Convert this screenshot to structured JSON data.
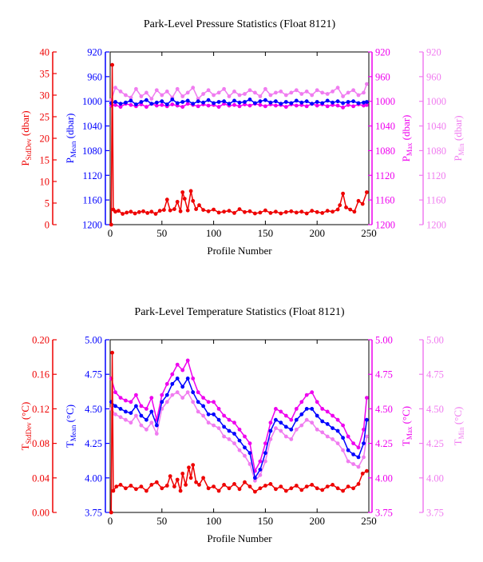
{
  "chart_data": [
    {
      "type": "line",
      "title": "Park-Level Pressure Statistics (Float 8121)",
      "xlabel": "Profile Number",
      "xlim": [
        0,
        250
      ],
      "xticks": [
        0,
        50,
        100,
        150,
        200,
        250
      ],
      "axes": {
        "stddev": {
          "label_base": "P",
          "label_sub": "StdDev",
          "label_unit": " (dbar)",
          "lim": [
            0,
            40
          ],
          "ticks": [
            0,
            5,
            10,
            15,
            20,
            25,
            30,
            35,
            40
          ],
          "inverted": false
        },
        "mean": {
          "label_base": "P",
          "label_sub": "Mean",
          "label_unit": " (dbar)",
          "lim": [
            920,
            1200
          ],
          "ticks": [
            920,
            960,
            1000,
            1040,
            1080,
            1120,
            1160,
            1200
          ],
          "inverted": true
        },
        "max": {
          "label_base": "P",
          "label_sub": "Max",
          "label_unit": " (dbar)",
          "lim": [
            920,
            1200
          ],
          "ticks": [
            920,
            960,
            1000,
            1040,
            1080,
            1120,
            1160,
            1200
          ],
          "inverted": true
        },
        "min": {
          "label_base": "P",
          "label_sub": "Min",
          "label_unit": " (dbar)",
          "lim": [
            920,
            1200
          ],
          "ticks": [
            920,
            960,
            1000,
            1040,
            1080,
            1120,
            1160,
            1200
          ],
          "inverted": true
        }
      },
      "series": [
        {
          "axis": "min",
          "color": "#f07cf0",
          "x": [
            1,
            5,
            10,
            15,
            20,
            25,
            30,
            35,
            40,
            45,
            50,
            55,
            60,
            65,
            70,
            75,
            80,
            85,
            90,
            95,
            100,
            105,
            110,
            115,
            120,
            125,
            130,
            135,
            140,
            145,
            150,
            155,
            160,
            165,
            170,
            175,
            180,
            185,
            190,
            195,
            200,
            205,
            210,
            215,
            220,
            225,
            230,
            235,
            240,
            245,
            248
          ],
          "y": [
            998,
            978,
            984,
            990,
            994,
            980,
            992,
            986,
            996,
            982,
            990,
            984,
            994,
            980,
            992,
            986,
            978,
            996,
            988,
            982,
            990,
            986,
            980,
            992,
            984,
            990,
            988,
            982,
            986,
            992,
            980,
            990,
            986,
            984,
            990,
            986,
            982,
            988,
            984,
            990,
            982,
            986,
            988,
            984,
            978,
            992,
            986,
            982,
            990,
            986,
            972
          ]
        },
        {
          "axis": "max",
          "color": "#ee00ee",
          "x": [
            1,
            5,
            10,
            15,
            20,
            25,
            30,
            35,
            40,
            45,
            50,
            55,
            60,
            65,
            70,
            75,
            80,
            85,
            90,
            95,
            100,
            105,
            110,
            115,
            120,
            125,
            130,
            135,
            140,
            145,
            150,
            155,
            160,
            165,
            170,
            175,
            180,
            185,
            190,
            195,
            200,
            205,
            210,
            215,
            220,
            225,
            230,
            235,
            240,
            245,
            248
          ],
          "y": [
            1007,
            1006,
            1009,
            1004,
            1006,
            1008,
            1005,
            1009,
            1004,
            1007,
            1006,
            1008,
            1005,
            1007,
            1009,
            1004,
            1006,
            1008,
            1005,
            1007,
            1006,
            1009,
            1004,
            1007,
            1006,
            1008,
            1005,
            1007,
            1004,
            1006,
            1008,
            1005,
            1007,
            1006,
            1009,
            1005,
            1007,
            1006,
            1008,
            1004,
            1007,
            1005,
            1008,
            1006,
            1007,
            1010,
            1006,
            1008,
            1005,
            1007,
            1006
          ]
        },
        {
          "axis": "mean",
          "color": "#0000ff",
          "x": [
            1,
            5,
            10,
            15,
            20,
            25,
            30,
            35,
            40,
            45,
            50,
            55,
            60,
            65,
            70,
            75,
            80,
            85,
            90,
            95,
            100,
            105,
            110,
            115,
            120,
            125,
            130,
            135,
            140,
            145,
            150,
            155,
            160,
            165,
            170,
            175,
            180,
            185,
            190,
            195,
            200,
            205,
            210,
            215,
            220,
            225,
            230,
            235,
            240,
            245,
            248
          ],
          "y": [
            1003,
            1001,
            1004,
            1002,
            999,
            1005,
            1001,
            998,
            1004,
            1002,
            1000,
            1005,
            997,
            1003,
            1001,
            999,
            1004,
            1000,
            1002,
            998,
            1003,
            1001,
            1000,
            1004,
            999,
            1002,
            1001,
            997,
            1003,
            1000,
            998,
            1002,
            1000,
            1004,
            1001,
            1003,
            999,
            1002,
            1000,
            1004,
            1001,
            1003,
            999,
            1002,
            1000,
            1003,
            1001,
            1000,
            1003,
            1002,
            1001
          ]
        },
        {
          "axis": "stddev",
          "color": "#ee0000",
          "x": [
            1,
            2,
            3,
            5,
            8,
            12,
            16,
            20,
            24,
            28,
            32,
            36,
            40,
            44,
            48,
            52,
            55,
            58,
            62,
            65,
            68,
            70,
            72,
            75,
            78,
            80,
            83,
            86,
            90,
            95,
            100,
            105,
            110,
            115,
            120,
            125,
            130,
            135,
            140,
            145,
            150,
            155,
            160,
            165,
            170,
            175,
            180,
            185,
            190,
            195,
            200,
            205,
            210,
            215,
            220,
            222,
            225,
            228,
            232,
            236,
            240,
            244,
            248
          ],
          "y": [
            0,
            37,
            3.5,
            3,
            3.2,
            2.5,
            2.8,
            3,
            2.6,
            2.9,
            3.1,
            2.7,
            3,
            2.5,
            3.2,
            3.4,
            5.8,
            3.3,
            3.6,
            5.3,
            3.1,
            7.5,
            6,
            3.3,
            7.8,
            5.5,
            3.6,
            4.5,
            3.4,
            3.1,
            3.5,
            2.8,
            3,
            3.2,
            2.7,
            3.6,
            2.9,
            3.1,
            2.6,
            2.8,
            3.3,
            2.7,
            3,
            2.6,
            2.9,
            3.1,
            2.8,
            3,
            2.6,
            3.2,
            2.9,
            2.7,
            3.2,
            3,
            3.5,
            4.5,
            7.2,
            4,
            3.5,
            3,
            5.5,
            4.8,
            7.5
          ]
        }
      ]
    },
    {
      "type": "line",
      "title": "Park-Level Temperature Statistics (Float 8121)",
      "xlabel": "Profile Number",
      "xlim": [
        0,
        250
      ],
      "xticks": [
        0,
        50,
        100,
        150,
        200,
        250
      ],
      "axes": {
        "stddev": {
          "label_base": "T",
          "label_sub": "StdDev",
          "label_unit": " (°C)",
          "lim": [
            0,
            0.2
          ],
          "ticks": [
            "0.00",
            "0.04",
            "0.08",
            "0.12",
            "0.16",
            "0.20"
          ],
          "inverted": false
        },
        "mean": {
          "label_base": "T",
          "label_sub": "Mean",
          "label_unit": " (°C)",
          "lim": [
            3.75,
            5.0
          ],
          "ticks": [
            "3.75",
            "4.00",
            "4.25",
            "4.50",
            "4.75",
            "5.00"
          ],
          "inverted": false
        },
        "max": {
          "label_base": "T",
          "label_sub": "Max",
          "label_unit": " (°C)",
          "lim": [
            3.75,
            5.0
          ],
          "ticks": [
            "3.75",
            "4.00",
            "4.25",
            "4.50",
            "4.75",
            "5.00"
          ],
          "inverted": false
        },
        "min": {
          "label_base": "T",
          "label_sub": "Min",
          "label_unit": " (°C)",
          "lim": [
            3.75,
            5.0
          ],
          "ticks": [
            "3.75",
            "4.00",
            "4.25",
            "4.50",
            "4.75",
            "5.00"
          ],
          "inverted": false
        }
      },
      "series": [
        {
          "axis": "min",
          "color": "#f07cf0",
          "x": [
            1,
            5,
            10,
            15,
            20,
            25,
            30,
            35,
            40,
            45,
            50,
            55,
            60,
            65,
            70,
            75,
            80,
            85,
            90,
            95,
            100,
            105,
            110,
            115,
            120,
            125,
            130,
            135,
            140,
            145,
            150,
            155,
            160,
            165,
            170,
            175,
            180,
            185,
            190,
            195,
            200,
            205,
            210,
            215,
            220,
            225,
            230,
            235,
            240,
            245,
            248
          ],
          "y": [
            4.5,
            4.46,
            4.44,
            4.42,
            4.4,
            4.45,
            4.38,
            4.35,
            4.4,
            4.32,
            4.5,
            4.55,
            4.6,
            4.62,
            4.58,
            4.62,
            4.55,
            4.48,
            4.45,
            4.4,
            4.38,
            4.36,
            4.3,
            4.28,
            4.25,
            4.2,
            4.16,
            4.1,
            3.98,
            4.02,
            4.12,
            4.28,
            4.36,
            4.34,
            4.3,
            4.28,
            4.35,
            4.38,
            4.42,
            4.4,
            4.35,
            4.33,
            4.3,
            4.28,
            4.25,
            4.2,
            4.12,
            4.1,
            4.08,
            4.15,
            4.3
          ]
        },
        {
          "axis": "max",
          "color": "#ee00ee",
          "x": [
            1,
            5,
            10,
            15,
            20,
            25,
            30,
            35,
            40,
            45,
            50,
            55,
            60,
            65,
            70,
            75,
            80,
            85,
            90,
            95,
            100,
            105,
            110,
            115,
            120,
            125,
            130,
            135,
            140,
            145,
            150,
            155,
            160,
            165,
            170,
            175,
            180,
            185,
            190,
            195,
            200,
            205,
            210,
            215,
            220,
            225,
            230,
            235,
            240,
            245,
            248
          ],
          "y": [
            4.72,
            4.62,
            4.58,
            4.56,
            4.55,
            4.6,
            4.52,
            4.5,
            4.58,
            4.42,
            4.6,
            4.68,
            4.75,
            4.82,
            4.78,
            4.85,
            4.72,
            4.62,
            4.58,
            4.55,
            4.55,
            4.5,
            4.45,
            4.42,
            4.4,
            4.35,
            4.3,
            4.25,
            4.05,
            4.12,
            4.25,
            4.4,
            4.5,
            4.48,
            4.45,
            4.42,
            4.5,
            4.55,
            4.6,
            4.62,
            4.55,
            4.5,
            4.48,
            4.45,
            4.42,
            4.38,
            4.3,
            4.25,
            4.22,
            4.35,
            4.58
          ]
        },
        {
          "axis": "mean",
          "color": "#0000ff",
          "x": [
            1,
            5,
            10,
            15,
            20,
            25,
            30,
            35,
            40,
            45,
            50,
            55,
            60,
            65,
            70,
            75,
            80,
            85,
            90,
            95,
            100,
            105,
            110,
            115,
            120,
            125,
            130,
            135,
            140,
            145,
            150,
            155,
            160,
            165,
            170,
            175,
            180,
            185,
            190,
            195,
            200,
            205,
            210,
            215,
            220,
            225,
            230,
            235,
            240,
            245,
            248
          ],
          "y": [
            4.55,
            4.52,
            4.5,
            4.48,
            4.47,
            4.52,
            4.45,
            4.42,
            4.48,
            4.38,
            4.55,
            4.6,
            4.68,
            4.72,
            4.66,
            4.72,
            4.62,
            4.55,
            4.52,
            4.46,
            4.46,
            4.42,
            4.37,
            4.34,
            4.32,
            4.27,
            4.22,
            4.18,
            4.0,
            4.06,
            4.18,
            4.34,
            4.42,
            4.4,
            4.37,
            4.35,
            4.42,
            4.46,
            4.5,
            4.5,
            4.45,
            4.41,
            4.39,
            4.36,
            4.34,
            4.29,
            4.2,
            4.17,
            4.15,
            4.25,
            4.42
          ]
        },
        {
          "axis": "stddev",
          "color": "#ee0000",
          "x": [
            1,
            2,
            3,
            6,
            10,
            15,
            20,
            25,
            30,
            35,
            40,
            45,
            50,
            55,
            58,
            62,
            65,
            68,
            70,
            73,
            76,
            78,
            80,
            83,
            86,
            90,
            95,
            100,
            105,
            110,
            115,
            120,
            125,
            130,
            135,
            140,
            145,
            150,
            155,
            160,
            165,
            170,
            175,
            180,
            185,
            190,
            195,
            200,
            205,
            210,
            215,
            220,
            225,
            230,
            235,
            240,
            244,
            248
          ],
          "y": [
            0.0,
            0.185,
            0.025,
            0.03,
            0.032,
            0.028,
            0.031,
            0.027,
            0.03,
            0.025,
            0.032,
            0.035,
            0.028,
            0.031,
            0.042,
            0.03,
            0.038,
            0.025,
            0.045,
            0.032,
            0.052,
            0.04,
            0.055,
            0.035,
            0.032,
            0.04,
            0.028,
            0.03,
            0.025,
            0.032,
            0.028,
            0.033,
            0.027,
            0.035,
            0.03,
            0.024,
            0.028,
            0.031,
            0.033,
            0.027,
            0.03,
            0.025,
            0.028,
            0.031,
            0.026,
            0.03,
            0.032,
            0.028,
            0.026,
            0.03,
            0.032,
            0.028,
            0.025,
            0.03,
            0.028,
            0.033,
            0.045,
            0.048
          ]
        }
      ]
    }
  ]
}
